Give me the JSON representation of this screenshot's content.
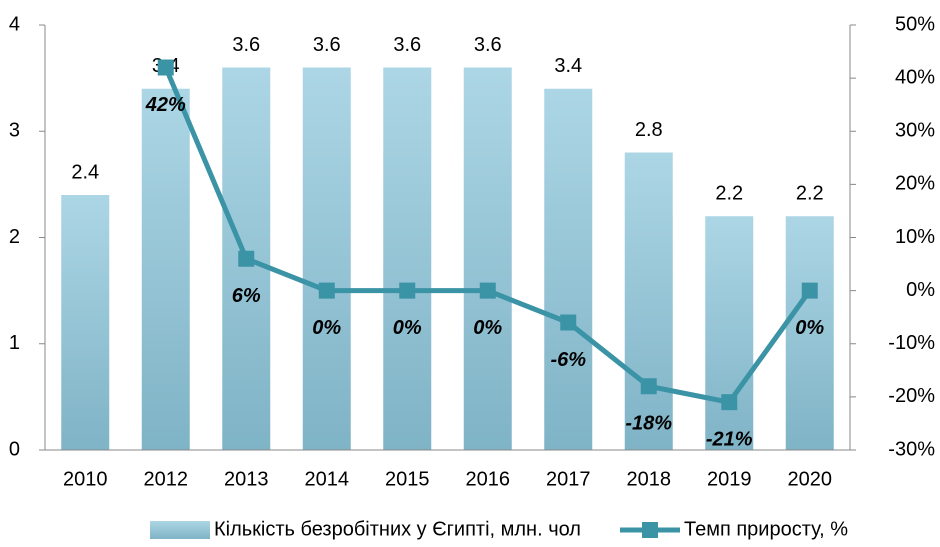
{
  "chart_data": {
    "type": "bar_line",
    "categories": [
      "2010",
      "2012",
      "2013",
      "2014",
      "2015",
      "2016",
      "2017",
      "2018",
      "2019",
      "2020"
    ],
    "series": [
      {
        "name": "Кількість безробітних у Єгипті, млн. чол",
        "color": "#93c6d8",
        "type": "bar",
        "values": [
          2.4,
          3.4,
          3.6,
          3.6,
          3.6,
          3.6,
          3.4,
          2.8,
          2.2,
          2.2
        ]
      },
      {
        "name": "Темп приросту, %",
        "color": "#3b93a6",
        "type": "line",
        "axis": "y2",
        "values": [
          null,
          42,
          6,
          0,
          0,
          0,
          -6,
          -18,
          -21,
          0
        ],
        "value_labels": [
          null,
          "42%",
          "6%",
          "0%",
          "0%",
          "0%",
          "-6%",
          "-18%",
          "-21%",
          "0%"
        ]
      }
    ],
    "ylim": [
      0,
      4
    ],
    "yticks": [
      0,
      1,
      2,
      3,
      4
    ],
    "y2lim": [
      -30,
      50
    ],
    "y2ticks": [
      {
        "value": -30,
        "label": "-30%"
      },
      {
        "value": -20,
        "label": "-20%"
      },
      {
        "value": -10,
        "label": "-10%"
      },
      {
        "value": 0,
        "label": "0%"
      },
      {
        "value": 10,
        "label": "10%"
      },
      {
        "value": 20,
        "label": "20%"
      },
      {
        "value": 30,
        "label": "30%"
      },
      {
        "value": 40,
        "label": "40%"
      },
      {
        "value": 50,
        "label": "50%"
      }
    ],
    "legend": "bottom"
  }
}
